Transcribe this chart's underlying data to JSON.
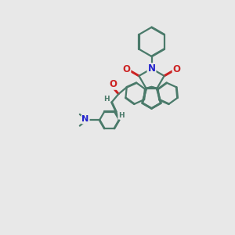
{
  "bg_color": "#e8e8e8",
  "bond_color": "#4a7a6a",
  "nitrogen_color": "#2222cc",
  "oxygen_color": "#cc2222",
  "lw": 1.6,
  "dbl_off": 0.012,
  "figsize": [
    3.0,
    3.0
  ],
  "dpi": 100
}
